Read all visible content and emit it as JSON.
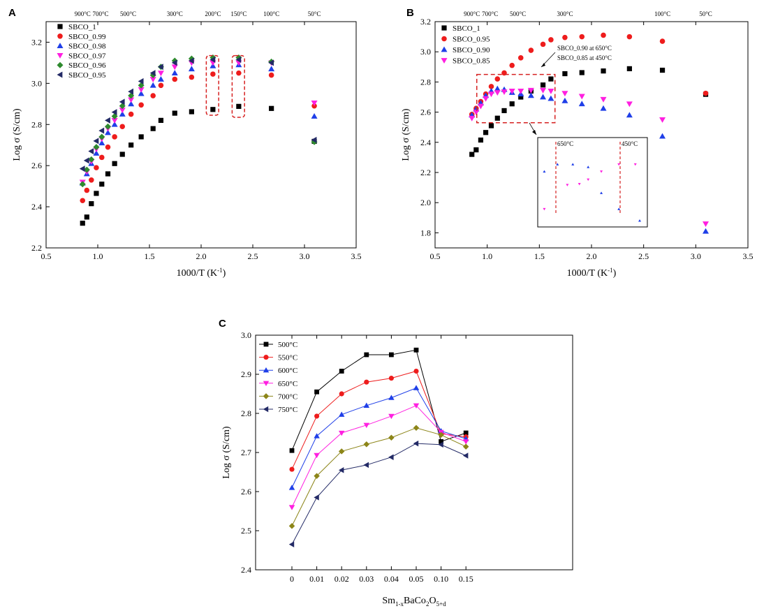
{
  "panels": {
    "A": {
      "letter": "A"
    },
    "B": {
      "letter": "B"
    },
    "C": {
      "letter": "C"
    }
  },
  "colors": {
    "black": "#000000",
    "red": "#ee1c1c",
    "blue": "#1f3fe8",
    "magenta": "#ff1fe0",
    "green": "#2e8a2e",
    "navy": "#232a66",
    "olive": "#8c8518",
    "dashed_red": "#d62020"
  },
  "chart_data": [
    {
      "id": "A",
      "type": "scatter",
      "title": "",
      "xlabel": "1000/T (K⁻¹)",
      "xlabel_main": "1000/T (K",
      "xlabel_sup": "-1",
      "xlabel_end": ")",
      "ylabel": "Log σ (S/cm)",
      "xlim": [
        0.5,
        3.5
      ],
      "ylim": [
        2.2,
        3.3
      ],
      "xticks": [
        "0.5",
        "1.0",
        "1.5",
        "2.0",
        "2.5",
        "3.0",
        "3.5"
      ],
      "xtick_values": [
        0.5,
        1.0,
        1.5,
        2.0,
        2.5,
        3.0,
        3.5
      ],
      "yticks": [
        "2.2",
        "2.4",
        "2.6",
        "2.8",
        "3.0",
        "3.2"
      ],
      "ytick_values": [
        2.2,
        2.4,
        2.6,
        2.8,
        3.0,
        3.2
      ],
      "top_temps": [
        {
          "label": "900°C",
          "x": 0.853
        },
        {
          "label": "700°C",
          "x": 1.027
        },
        {
          "label": "500°C",
          "x": 1.294
        },
        {
          "label": "300°C",
          "x": 1.745
        },
        {
          "label": "200°C",
          "x": 2.114
        },
        {
          "label": "150°C",
          "x": 2.364
        },
        {
          "label": "100°C",
          "x": 2.68
        },
        {
          "label": "50°C",
          "x": 3.095
        }
      ],
      "x": [
        0.853,
        0.894,
        0.938,
        0.986,
        1.039,
        1.098,
        1.163,
        1.238,
        1.322,
        1.42,
        1.535,
        1.611,
        1.745,
        1.908,
        2.114,
        2.364,
        2.68,
        3.095
      ],
      "series": [
        {
          "name": "SBCO_1",
          "marker": "square",
          "color": "#000000",
          "values": [
            2.32,
            2.35,
            2.415,
            2.465,
            2.51,
            2.56,
            2.61,
            2.655,
            2.7,
            2.74,
            2.78,
            2.82,
            2.855,
            2.862,
            2.873,
            2.888,
            2.878,
            2.718
          ]
        },
        {
          "name": "SBCO_0.99",
          "marker": "circle",
          "color": "#ee1c1c",
          "values": [
            2.43,
            2.48,
            2.53,
            2.59,
            2.64,
            2.69,
            2.74,
            2.79,
            2.85,
            2.895,
            2.94,
            2.99,
            3.02,
            3.03,
            3.045,
            3.05,
            3.04,
            2.89
          ]
        },
        {
          "name": "SBCO_0.98",
          "marker": "triangle-up",
          "color": "#1f3fe8",
          "values": [
            2.515,
            2.56,
            2.61,
            2.66,
            2.71,
            2.76,
            2.8,
            2.85,
            2.9,
            2.95,
            2.99,
            3.02,
            3.05,
            3.07,
            3.085,
            3.09,
            3.07,
            2.84
          ]
        },
        {
          "name": "SBCO_0.97",
          "marker": "triangle-down",
          "color": "#ff1fe0",
          "values": [
            2.52,
            2.57,
            2.62,
            2.68,
            2.73,
            2.78,
            2.82,
            2.87,
            2.92,
            2.97,
            3.02,
            3.05,
            3.08,
            3.1,
            3.1,
            3.1,
            3.1,
            2.905
          ]
        },
        {
          "name": "SBCO_0.96",
          "marker": "diamond",
          "color": "#2e8a2e",
          "values": [
            2.51,
            2.58,
            2.63,
            2.69,
            2.74,
            2.79,
            2.84,
            2.89,
            2.94,
            2.99,
            3.04,
            3.08,
            3.11,
            3.12,
            3.125,
            3.125,
            3.105,
            2.715
          ]
        },
        {
          "name": "SBCO_0.95",
          "marker": "triangle-left",
          "color": "#232a66",
          "values": [
            2.585,
            2.625,
            2.67,
            2.72,
            2.77,
            2.82,
            2.86,
            2.91,
            2.96,
            3.01,
            3.05,
            3.08,
            3.1,
            3.11,
            3.115,
            3.115,
            3.1,
            2.725
          ]
        }
      ],
      "highlight_boxes": [
        {
          "x0": 2.05,
          "x1": 2.17,
          "y0": 2.845,
          "y1": 3.135
        },
        {
          "x0": 2.3,
          "x1": 2.42,
          "y0": 2.835,
          "y1": 3.135
        }
      ]
    },
    {
      "id": "B",
      "type": "scatter",
      "title": "",
      "xlabel": "1000/T (K⁻¹)",
      "xlabel_main": "1000/T (K",
      "xlabel_sup": "-1",
      "xlabel_end": ")",
      "ylabel": "Log σ (S/cm)",
      "xlim": [
        0.5,
        3.5
      ],
      "ylim": [
        1.7,
        3.2
      ],
      "xticks": [
        "0.5",
        "1.0",
        "1.5",
        "2.0",
        "2.5",
        "3.0",
        "3.5"
      ],
      "xtick_values": [
        0.5,
        1.0,
        1.5,
        2.0,
        2.5,
        3.0,
        3.5
      ],
      "yticks": [
        "1.8",
        "2.0",
        "2.2",
        "2.4",
        "2.6",
        "2.8",
        "3.0",
        "3.2"
      ],
      "ytick_values": [
        1.8,
        2.0,
        2.2,
        2.4,
        2.6,
        2.8,
        3.0,
        3.2
      ],
      "top_temps": [
        {
          "label": "900°C",
          "x": 0.853
        },
        {
          "label": "700°C",
          "x": 1.027
        },
        {
          "label": "500°C",
          "x": 1.294
        },
        {
          "label": "300°C",
          "x": 1.745
        },
        {
          "label": "100°C",
          "x": 2.68
        },
        {
          "label": "50°C",
          "x": 3.095
        }
      ],
      "x": [
        0.853,
        0.894,
        0.938,
        0.986,
        1.039,
        1.098,
        1.163,
        1.238,
        1.322,
        1.42,
        1.535,
        1.611,
        1.745,
        1.908,
        2.114,
        2.364,
        2.68,
        3.095
      ],
      "series": [
        {
          "name": "SBCO_1",
          "marker": "square",
          "color": "#000000",
          "values": [
            2.32,
            2.35,
            2.415,
            2.465,
            2.51,
            2.56,
            2.61,
            2.655,
            2.7,
            2.74,
            2.78,
            2.82,
            2.855,
            2.862,
            2.873,
            2.888,
            2.878,
            2.718
          ]
        },
        {
          "name": "SBCO_0.95",
          "marker": "circle",
          "color": "#ee1c1c",
          "values": [
            2.585,
            2.625,
            2.67,
            2.72,
            2.77,
            2.82,
            2.86,
            2.91,
            2.96,
            3.01,
            3.05,
            3.08,
            3.095,
            3.1,
            3.11,
            3.1,
            3.07,
            2.725
          ]
        },
        {
          "name": "SBCO_0.90",
          "marker": "triangle-up",
          "color": "#1f3fe8",
          "values": [
            2.58,
            2.62,
            2.66,
            2.71,
            2.74,
            2.755,
            2.75,
            2.73,
            2.72,
            2.71,
            2.7,
            2.69,
            2.675,
            2.655,
            2.625,
            2.58,
            2.44,
            1.81
          ]
        },
        {
          "name": "SBCO_0.85",
          "marker": "triangle-down",
          "color": "#ff1fe0",
          "values": [
            2.56,
            2.6,
            2.64,
            2.69,
            2.72,
            2.73,
            2.735,
            2.74,
            2.74,
            2.745,
            2.745,
            2.74,
            2.725,
            2.705,
            2.685,
            2.655,
            2.55,
            1.86
          ]
        }
      ],
      "dashed_box": {
        "x0": 0.9,
        "x1": 1.65,
        "y0": 2.53,
        "y1": 2.85
      },
      "annotations": [
        "SBCO_0.90 at 650°C",
        "SBCO_0.85 at 450°C"
      ],
      "inset": {
        "labels": [
          "650°C",
          "450°C"
        ],
        "points": [
          {
            "u": 0.06,
            "v": 0.38,
            "m": "triangle-up",
            "c": "#1f3fe8"
          },
          {
            "u": 0.06,
            "v": 0.8,
            "m": "triangle-down",
            "c": "#ff1fe0"
          },
          {
            "u": 0.18,
            "v": 0.3,
            "m": "triangle-up",
            "c": "#1f3fe8"
          },
          {
            "u": 0.27,
            "v": 0.53,
            "m": "triangle-down",
            "c": "#ff1fe0"
          },
          {
            "u": 0.32,
            "v": 0.3,
            "m": "triangle-up",
            "c": "#1f3fe8"
          },
          {
            "u": 0.38,
            "v": 0.52,
            "m": "triangle-down",
            "c": "#ff1fe0"
          },
          {
            "u": 0.46,
            "v": 0.33,
            "m": "triangle-up",
            "c": "#1f3fe8"
          },
          {
            "u": 0.46,
            "v": 0.47,
            "m": "triangle-down",
            "c": "#ff1fe0"
          },
          {
            "u": 0.58,
            "v": 0.38,
            "m": "triangle-down",
            "c": "#ff1fe0"
          },
          {
            "u": 0.58,
            "v": 0.62,
            "m": "triangle-up",
            "c": "#1f3fe8"
          },
          {
            "u": 0.74,
            "v": 0.3,
            "m": "triangle-down",
            "c": "#ff1fe0"
          },
          {
            "u": 0.74,
            "v": 0.8,
            "m": "triangle-up",
            "c": "#1f3fe8"
          },
          {
            "u": 0.89,
            "v": 0.3,
            "m": "triangle-down",
            "c": "#ff1fe0"
          },
          {
            "u": 0.93,
            "v": 0.93,
            "m": "triangle-up",
            "c": "#1f3fe8"
          }
        ]
      }
    },
    {
      "id": "C",
      "type": "line",
      "title": "",
      "xlabel": "Sm1-xBaCo2O5+d",
      "ylabel": "Log σ (S/cm)",
      "categories": [
        "0",
        "0.01",
        "0.02",
        "0.03",
        "0.04",
        "0.05",
        "0.10",
        "0.15"
      ],
      "ylim": [
        2.4,
        3.0
      ],
      "yticks": [
        "2.4",
        "2.5",
        "2.6",
        "2.7",
        "2.8",
        "2.9",
        "3.0"
      ],
      "ytick_values": [
        2.4,
        2.5,
        2.6,
        2.7,
        2.8,
        2.9,
        3.0
      ],
      "series": [
        {
          "name": "500°C",
          "marker": "square",
          "color": "#000000",
          "values": [
            2.705,
            2.855,
            2.908,
            2.95,
            2.95,
            2.962,
            2.728,
            2.75
          ]
        },
        {
          "name": "550°C",
          "marker": "circle",
          "color": "#ee1c1c",
          "values": [
            2.657,
            2.793,
            2.85,
            2.88,
            2.89,
            2.908,
            2.748,
            2.74
          ]
        },
        {
          "name": "600°C",
          "marker": "triangle-up",
          "color": "#1f3fe8",
          "values": [
            2.61,
            2.742,
            2.797,
            2.82,
            2.84,
            2.865,
            2.755,
            2.735
          ]
        },
        {
          "name": "650°C",
          "marker": "triangle-down",
          "color": "#ff1fe0",
          "values": [
            2.56,
            2.693,
            2.75,
            2.77,
            2.793,
            2.82,
            2.752,
            2.728
          ]
        },
        {
          "name": "700°C",
          "marker": "diamond",
          "color": "#8c8518",
          "values": [
            2.512,
            2.64,
            2.703,
            2.721,
            2.738,
            2.763,
            2.745,
            2.715
          ]
        },
        {
          "name": "750°C",
          "marker": "triangle-left",
          "color": "#232a66",
          "values": [
            2.465,
            2.585,
            2.655,
            2.668,
            2.688,
            2.723,
            2.72,
            2.692
          ]
        }
      ]
    }
  ]
}
